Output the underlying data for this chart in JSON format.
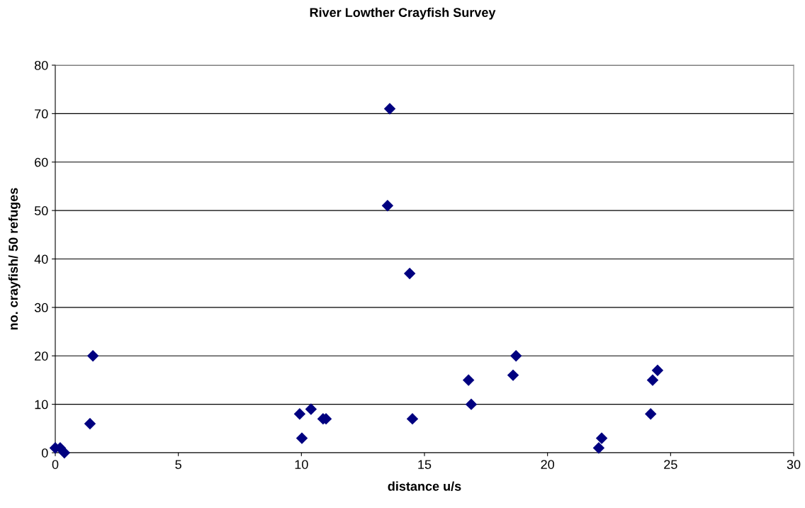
{
  "chart_data": {
    "type": "scatter",
    "title": "River Lowther Crayfish Survey",
    "xlabel": "distance u/s",
    "ylabel": "no. crayfish/ 50 refuges",
    "x": [
      0,
      0.2,
      0.37,
      1.41,
      1.53,
      9.93,
      10.02,
      10.39,
      10.88,
      11.0,
      13.5,
      13.59,
      14.4,
      14.51,
      16.79,
      16.9,
      18.6,
      18.72,
      22.08,
      22.2,
      24.19,
      24.27,
      24.47
    ],
    "values": [
      1,
      1,
      0,
      6,
      20,
      8,
      3,
      9,
      7,
      7,
      51,
      71,
      37,
      7,
      15,
      10,
      16,
      20,
      1,
      3,
      8,
      15,
      17
    ],
    "color": "#000080",
    "marker": "diamond",
    "grid": "y",
    "xlim": [
      0,
      30
    ],
    "xticks": [
      0,
      5,
      10,
      15,
      20,
      25,
      30
    ],
    "ylim": [
      0,
      80
    ],
    "yticks": [
      0,
      10,
      20,
      30,
      40,
      50,
      60,
      70,
      80
    ]
  }
}
